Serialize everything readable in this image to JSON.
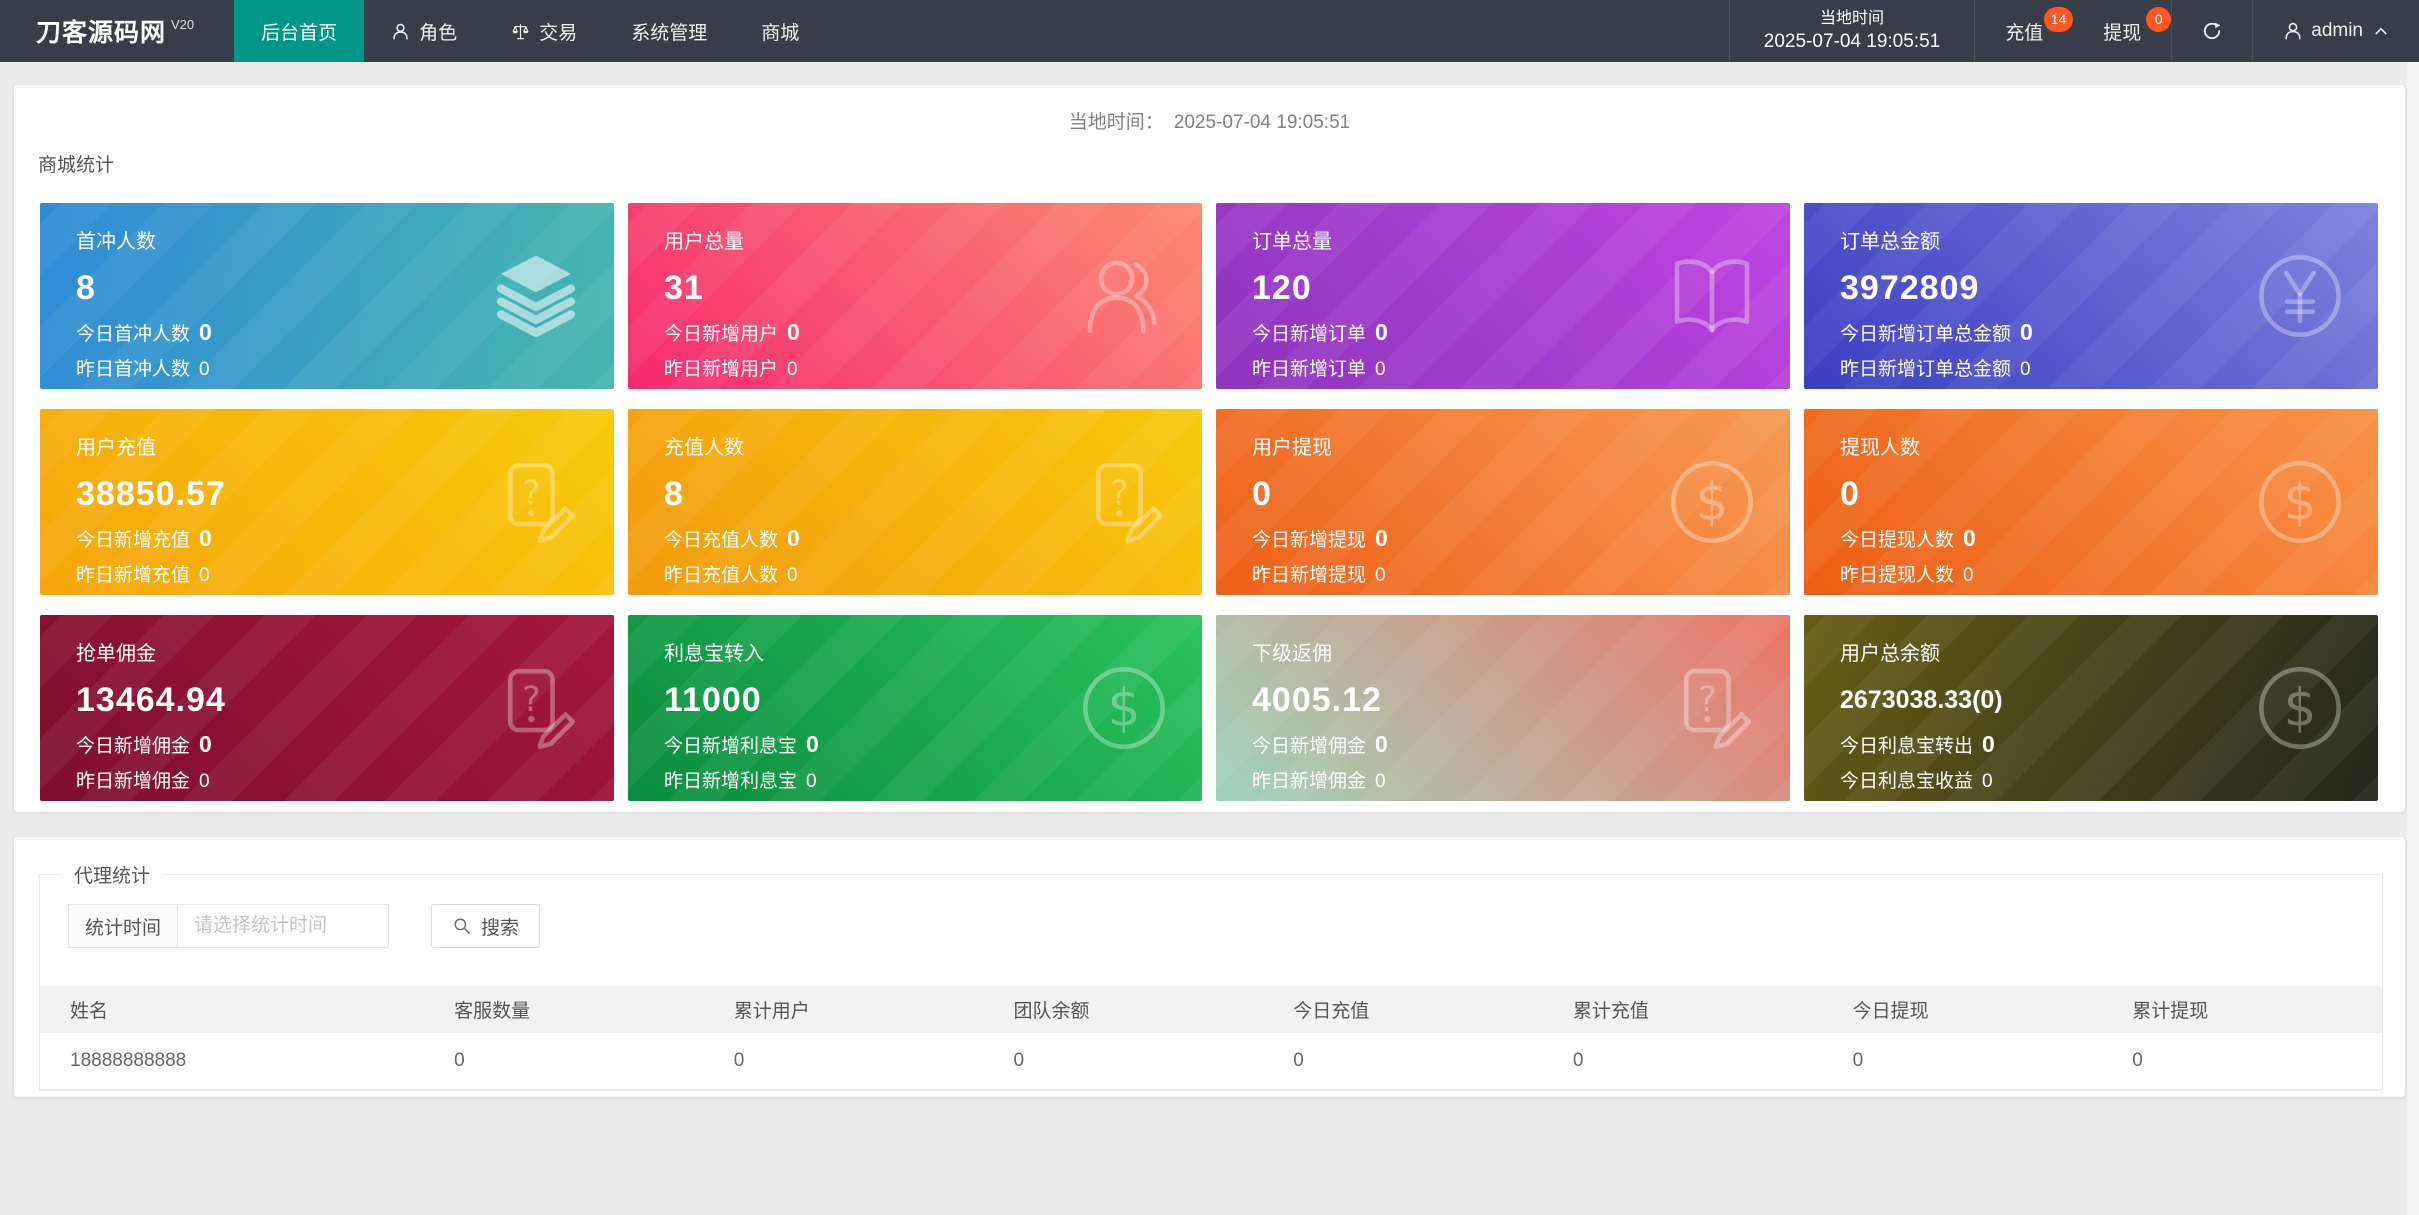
{
  "navbar": {
    "brand": "刀客源码网",
    "version": "V20",
    "menu": [
      {
        "label": "后台首页"
      },
      {
        "label": "角色"
      },
      {
        "label": "交易"
      },
      {
        "label": "系统管理"
      },
      {
        "label": "商城"
      }
    ],
    "time_label": "当地时间",
    "time_value": "2025-07-04 19:05:51",
    "recharge_label": "充值",
    "recharge_badge": "14",
    "withdraw_label": "提现",
    "withdraw_badge": "0",
    "username": "admin"
  },
  "main": {
    "time_label": "当地时间：",
    "time_value": "2025-07-04 19:05:51",
    "section_title": "商城统计"
  },
  "cards": [
    {
      "title": "首冲人数",
      "value": "8",
      "today_label": "今日首冲人数",
      "today_value": "0",
      "yesterday_label": "昨日首冲人数",
      "yesterday_value": "0",
      "icon": "layers",
      "angle": "100deg",
      "from": "#2F8BD9",
      "to": "#45B7AC"
    },
    {
      "title": "用户总量",
      "value": "31",
      "today_label": "今日新增用户",
      "today_value": "0",
      "yesterday_label": "昨日新增用户",
      "yesterday_value": "0",
      "icon": "users",
      "angle": "45deg",
      "from": "#F62A70",
      "to": "#FB8A70"
    },
    {
      "title": "订单总量",
      "value": "120",
      "today_label": "今日新增订单",
      "today_value": "0",
      "yesterday_label": "昨日新增订单",
      "yesterday_value": "0",
      "icon": "book",
      "angle": "45deg",
      "from": "#8C35BE",
      "to": "#C044E2"
    },
    {
      "title": "订单总金额",
      "value": "3972809",
      "today_label": "今日新增订单总金额",
      "today_value": "0",
      "yesterday_label": "昨日新增订单总金额",
      "yesterday_value": "0",
      "icon": "yen",
      "angle": "45deg",
      "from": "#3A3FC2",
      "to": "#7D82DD"
    },
    {
      "title": "用户充值",
      "value": "38850.57",
      "today_label": "今日新增充值",
      "today_value": "0",
      "yesterday_label": "昨日新增充值",
      "yesterday_value": "0",
      "icon": "file-pen",
      "angle": "45deg",
      "from": "#F6A50C",
      "to": "#F9CA0A"
    },
    {
      "title": "充值人数",
      "value": "8",
      "today_label": "今日充值人数",
      "today_value": "0",
      "yesterday_label": "昨日充值人数",
      "yesterday_value": "0",
      "icon": "file-pen",
      "angle": "45deg",
      "from": "#F29A0E",
      "to": "#F9C90C"
    },
    {
      "title": "用户提现",
      "value": "0",
      "today_label": "今日新增提现",
      "today_value": "0",
      "yesterday_label": "昨日新增提现",
      "yesterday_value": "0",
      "icon": "dollar",
      "angle": "45deg",
      "from": "#EE6018",
      "to": "#F79A53"
    },
    {
      "title": "提现人数",
      "value": "0",
      "today_label": "今日提现人数",
      "today_value": "0",
      "yesterday_label": "昨日提现人数",
      "yesterday_value": "0",
      "icon": "dollar",
      "angle": "45deg",
      "from": "#ED5E14",
      "to": "#F79248"
    },
    {
      "title": "抢单佣金",
      "value": "13464.94",
      "today_label": "今日新增佣金",
      "today_value": "0",
      "yesterday_label": "昨日新增佣金",
      "yesterday_value": "0",
      "icon": "file-pen",
      "angle": "45deg",
      "from": "#7F0F30",
      "to": "#A4163E"
    },
    {
      "title": "利息宝转入",
      "value": "11000",
      "today_label": "今日新增利息宝",
      "today_value": "0",
      "yesterday_label": "昨日新增利息宝",
      "yesterday_value": "0",
      "icon": "dollar",
      "angle": "45deg",
      "from": "#0B8C3F",
      "to": "#2BC25B"
    },
    {
      "title": "下级返佣",
      "value": "4005.12",
      "today_label": "今日新增佣金",
      "today_value": "0",
      "yesterday_label": "昨日新增佣金",
      "yesterday_value": "0",
      "icon": "file-pen",
      "angle": "45deg",
      "from": "#9FD4BC",
      "to": "#EC7466"
    },
    {
      "title": "用户总余额",
      "value": "2673038.33(0)",
      "small_value": true,
      "today_label": "今日利息宝转出",
      "today_value": "0",
      "yesterday_label": "今日利息宝收益",
      "yesterday_value": "0",
      "icon": "dollar",
      "angle": "115deg",
      "from": "#665D15",
      "to": "#23261C"
    }
  ],
  "agent": {
    "legend": "代理统计",
    "filter_label": "统计时间",
    "filter_placeholder": "请选择统计时间",
    "search_label": "搜索",
    "table": {
      "headers": [
        "姓名",
        "客服数量",
        "累计用户",
        "团队余额",
        "今日充值",
        "累计充值",
        "今日提现",
        "累计提现"
      ],
      "rows": [
        [
          "18888888888",
          "0",
          "0",
          "0",
          "0",
          "0",
          "0",
          "0"
        ]
      ]
    }
  },
  "colors": {
    "accent": "#009688",
    "badge": "#FF5722",
    "navbar": "#393D49"
  }
}
